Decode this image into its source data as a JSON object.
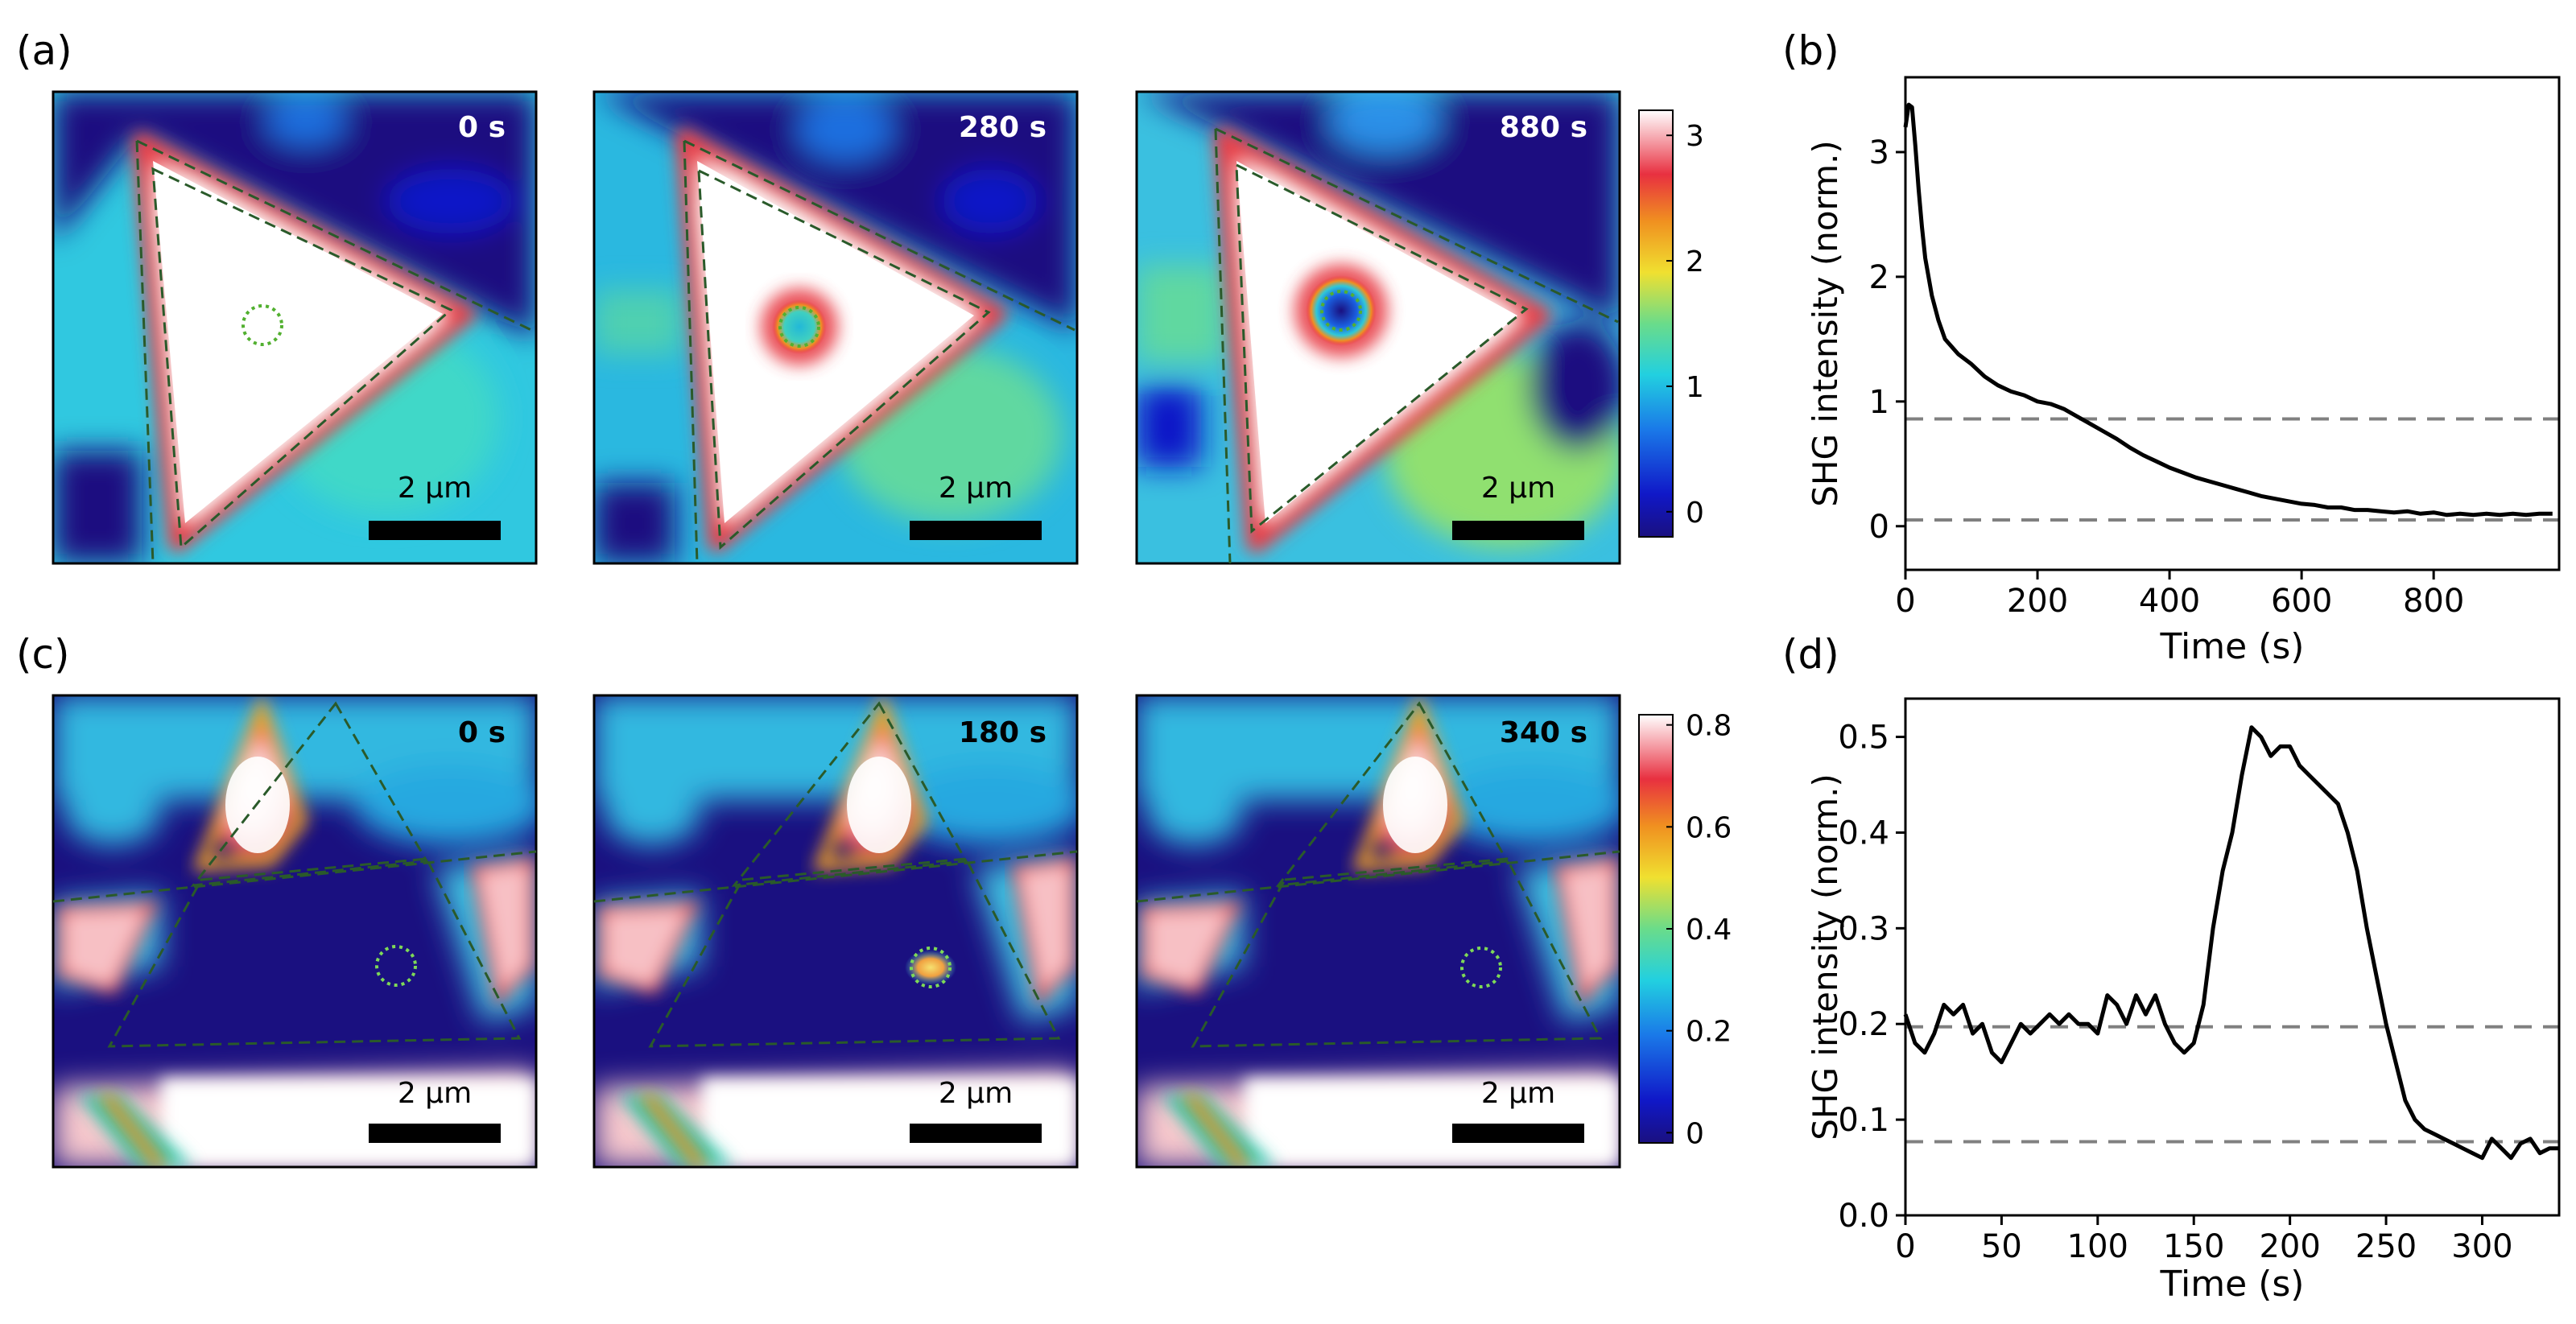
{
  "figure": {
    "panel_labels": [
      "(a)",
      "(b)",
      "(c)",
      "(d)"
    ],
    "scale_bar_label": "2 µm"
  },
  "panel_a": {
    "frames": [
      {
        "time_label": "0 s"
      },
      {
        "time_label": "280 s"
      },
      {
        "time_label": "880 s"
      }
    ],
    "colorbar": {
      "ticks": [
        "0",
        "1",
        "2",
        "3"
      ],
      "min": -0.2,
      "max": 3.2
    }
  },
  "panel_c": {
    "frames": [
      {
        "time_label": "0 s"
      },
      {
        "time_label": "180 s"
      },
      {
        "time_label": "340 s"
      }
    ],
    "colorbar": {
      "ticks": [
        "0",
        "0.2",
        "0.4",
        "0.6",
        "0.8"
      ],
      "min": -0.02,
      "max": 0.82
    }
  },
  "colors": {
    "line": "#000000",
    "reference_line": "#808080",
    "outline": "#2a5a2a",
    "spot": "#7ed957",
    "scalebar": "#000000",
    "time_label": "#ffffff"
  },
  "chart_data": [
    {
      "panel": "(b)",
      "type": "line",
      "xlabel": "Time (s)",
      "ylabel": "SHG intensity (norm.)",
      "xlim": [
        0,
        990
      ],
      "ylim": [
        -0.35,
        3.6
      ],
      "xticks": [
        0,
        200,
        400,
        600,
        800
      ],
      "xtick_labels": [
        "0",
        "200",
        "400",
        "600",
        "800"
      ],
      "yticks": [
        0,
        1,
        2,
        3
      ],
      "ytick_labels": [
        "0",
        "1",
        "2",
        "3"
      ],
      "reference_lines": [
        0.86,
        0.05
      ],
      "series": [
        {
          "name": "SHG intensity",
          "x": [
            0,
            5,
            10,
            15,
            20,
            25,
            30,
            40,
            50,
            60,
            70,
            80,
            100,
            120,
            140,
            160,
            180,
            200,
            220,
            240,
            260,
            280,
            300,
            320,
            340,
            360,
            380,
            400,
            420,
            440,
            460,
            480,
            500,
            520,
            540,
            560,
            580,
            600,
            620,
            640,
            660,
            680,
            700,
            720,
            740,
            760,
            780,
            800,
            820,
            840,
            860,
            880,
            900,
            920,
            940,
            960,
            980
          ],
          "values": [
            3.2,
            3.38,
            3.36,
            3.05,
            2.7,
            2.4,
            2.15,
            1.85,
            1.65,
            1.5,
            1.44,
            1.38,
            1.3,
            1.2,
            1.13,
            1.08,
            1.05,
            1.0,
            0.98,
            0.94,
            0.88,
            0.82,
            0.76,
            0.7,
            0.63,
            0.57,
            0.52,
            0.47,
            0.43,
            0.39,
            0.36,
            0.33,
            0.3,
            0.27,
            0.24,
            0.22,
            0.2,
            0.18,
            0.17,
            0.15,
            0.15,
            0.13,
            0.13,
            0.12,
            0.11,
            0.12,
            0.1,
            0.11,
            0.09,
            0.1,
            0.09,
            0.1,
            0.09,
            0.1,
            0.09,
            0.1,
            0.1
          ]
        }
      ]
    },
    {
      "panel": "(d)",
      "type": "line",
      "xlabel": "Time (s)",
      "ylabel": "SHG intensity (norm.)",
      "xlim": [
        0,
        340
      ],
      "ylim": [
        0,
        0.54
      ],
      "xticks": [
        0,
        50,
        100,
        150,
        200,
        250,
        300
      ],
      "xtick_labels": [
        "0",
        "50",
        "100",
        "150",
        "200",
        "250",
        "300"
      ],
      "yticks": [
        0,
        0.1,
        0.2,
        0.3,
        0.4,
        0.5
      ],
      "ytick_labels": [
        "0.0",
        "0.1",
        "0.2",
        "0.3",
        "0.4",
        "0.5"
      ],
      "reference_lines": [
        0.197,
        0.077
      ],
      "series": [
        {
          "name": "SHG intensity",
          "x": [
            0,
            5,
            10,
            15,
            20,
            25,
            30,
            35,
            40,
            45,
            50,
            55,
            60,
            65,
            70,
            75,
            80,
            85,
            90,
            95,
            100,
            105,
            110,
            115,
            120,
            125,
            130,
            135,
            140,
            145,
            150,
            155,
            160,
            165,
            170,
            175,
            180,
            185,
            190,
            195,
            200,
            205,
            210,
            215,
            220,
            225,
            230,
            235,
            240,
            245,
            250,
            255,
            260,
            265,
            270,
            275,
            280,
            285,
            290,
            295,
            300,
            305,
            310,
            315,
            320,
            325,
            330,
            335,
            340
          ],
          "values": [
            0.21,
            0.18,
            0.17,
            0.19,
            0.22,
            0.21,
            0.22,
            0.19,
            0.2,
            0.17,
            0.16,
            0.18,
            0.2,
            0.19,
            0.2,
            0.21,
            0.2,
            0.21,
            0.2,
            0.2,
            0.19,
            0.23,
            0.22,
            0.2,
            0.23,
            0.21,
            0.23,
            0.2,
            0.18,
            0.17,
            0.18,
            0.22,
            0.3,
            0.36,
            0.4,
            0.46,
            0.51,
            0.5,
            0.48,
            0.49,
            0.49,
            0.47,
            0.46,
            0.45,
            0.44,
            0.43,
            0.4,
            0.36,
            0.3,
            0.25,
            0.2,
            0.16,
            0.12,
            0.1,
            0.09,
            0.085,
            0.08,
            0.075,
            0.07,
            0.065,
            0.06,
            0.08,
            0.07,
            0.06,
            0.075,
            0.08,
            0.065,
            0.07,
            0.07
          ]
        }
      ]
    }
  ]
}
